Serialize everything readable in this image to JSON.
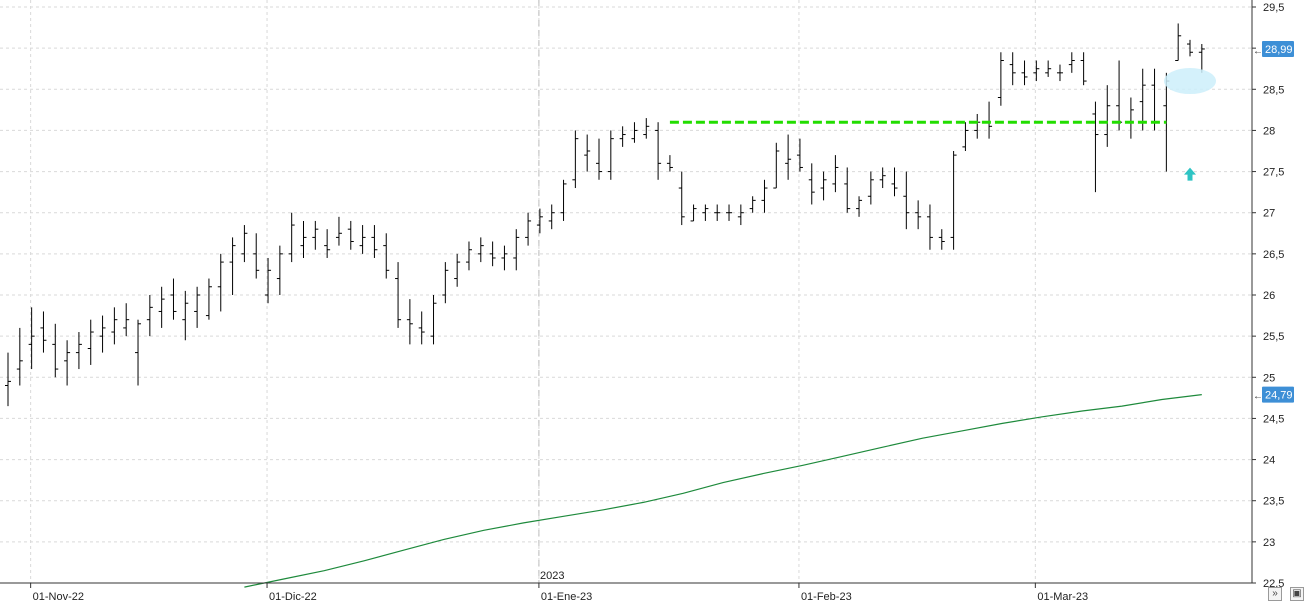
{
  "chart_data": {
    "type": "ohlc",
    "title": "",
    "xlabel": "",
    "ylabel": "",
    "ylim": [
      22.5,
      29.5
    ],
    "grid": true,
    "x_ticks": [
      "01-Nov-22",
      "01-Dic-22",
      "01-Ene-23",
      "01-Feb-23",
      "01-Mar-23"
    ],
    "year_marker": "2023",
    "y_ticks": [
      "29,5",
      "29",
      "28,5",
      "28",
      "27,5",
      "27",
      "26,5",
      "26",
      "25,5",
      "25",
      "24,5",
      "24",
      "23,5",
      "23",
      "22,5"
    ],
    "price_label": "28,99",
    "ma_label": "24,79",
    "colors": {
      "bars": "#000000",
      "moving_average": "#1e8a3c",
      "support_line": "#22dd00",
      "price_badge": "#3d8fd6",
      "arrow": "#2ec4c4",
      "highlight": "#cdeefa"
    },
    "ohlc": [
      [
        24.9,
        25.3,
        24.65,
        24.95
      ],
      [
        25.1,
        25.6,
        24.9,
        25.2
      ],
      [
        25.4,
        25.85,
        25.1,
        25.5
      ],
      [
        25.6,
        25.8,
        25.3,
        25.45
      ],
      [
        25.4,
        25.65,
        25.0,
        25.1
      ],
      [
        25.2,
        25.45,
        24.9,
        25.3
      ],
      [
        25.3,
        25.55,
        25.1,
        25.4
      ],
      [
        25.35,
        25.7,
        25.15,
        25.55
      ],
      [
        25.5,
        25.75,
        25.3,
        25.6
      ],
      [
        25.55,
        25.85,
        25.4,
        25.7
      ],
      [
        25.6,
        25.9,
        25.5,
        25.7
      ],
      [
        25.3,
        25.7,
        24.9,
        25.65
      ],
      [
        25.7,
        26.0,
        25.5,
        25.85
      ],
      [
        25.8,
        26.1,
        25.6,
        25.95
      ],
      [
        26.0,
        26.2,
        25.7,
        25.8
      ],
      [
        25.7,
        26.05,
        25.45,
        25.9
      ],
      [
        25.8,
        26.1,
        25.6,
        26.0
      ],
      [
        25.75,
        26.2,
        25.7,
        26.1
      ],
      [
        26.1,
        26.5,
        25.8,
        26.4
      ],
      [
        26.4,
        26.7,
        26.0,
        26.6
      ],
      [
        26.5,
        26.85,
        26.4,
        26.75
      ],
      [
        26.5,
        26.75,
        26.2,
        26.3
      ],
      [
        26.0,
        26.45,
        25.9,
        26.3
      ],
      [
        26.2,
        26.6,
        26.0,
        26.5
      ],
      [
        26.5,
        27.0,
        26.4,
        26.85
      ],
      [
        26.6,
        26.9,
        26.45,
        26.7
      ],
      [
        26.7,
        26.9,
        26.55,
        26.8
      ],
      [
        26.6,
        26.8,
        26.45,
        26.55
      ],
      [
        26.7,
        26.95,
        26.6,
        26.75
      ],
      [
        26.8,
        26.9,
        26.55,
        26.65
      ],
      [
        26.6,
        26.85,
        26.5,
        26.7
      ],
      [
        26.7,
        26.85,
        26.45,
        26.55
      ],
      [
        26.6,
        26.75,
        26.2,
        26.3
      ],
      [
        26.2,
        26.4,
        25.6,
        25.7
      ],
      [
        25.7,
        25.95,
        25.4,
        25.65
      ],
      [
        25.6,
        25.8,
        25.4,
        25.55
      ],
      [
        25.5,
        26.0,
        25.4,
        25.9
      ],
      [
        26.0,
        26.4,
        25.9,
        26.3
      ],
      [
        26.2,
        26.5,
        26.1,
        26.4
      ],
      [
        26.4,
        26.65,
        26.3,
        26.55
      ],
      [
        26.5,
        26.7,
        26.4,
        26.6
      ],
      [
        26.5,
        26.65,
        26.35,
        26.45
      ],
      [
        26.45,
        26.6,
        26.3,
        26.5
      ],
      [
        26.45,
        26.8,
        26.3,
        26.7
      ],
      [
        26.7,
        27.0,
        26.6,
        26.9
      ],
      [
        26.85,
        27.05,
        26.75,
        26.95
      ],
      [
        26.9,
        27.1,
        26.8,
        27.0
      ],
      [
        27.0,
        27.4,
        26.9,
        27.35
      ],
      [
        27.4,
        28.0,
        27.3,
        27.9
      ],
      [
        27.7,
        27.95,
        27.5,
        27.75
      ],
      [
        27.6,
        27.9,
        27.4,
        27.5
      ],
      [
        27.5,
        28.0,
        27.4,
        27.9
      ],
      [
        27.9,
        28.05,
        27.8,
        27.95
      ],
      [
        27.9,
        28.1,
        27.85,
        28.0
      ],
      [
        27.95,
        28.15,
        27.9,
        28.05
      ],
      [
        28.0,
        28.1,
        27.4,
        27.6
      ],
      [
        27.6,
        27.7,
        27.5,
        27.55
      ],
      [
        27.3,
        27.5,
        26.85,
        26.95
      ],
      [
        26.9,
        27.1,
        26.9,
        27.05
      ],
      [
        27.0,
        27.1,
        26.9,
        27.05
      ],
      [
        27.0,
        27.1,
        26.9,
        27.0
      ],
      [
        27.0,
        27.1,
        26.9,
        27.0
      ],
      [
        26.95,
        27.1,
        26.85,
        27.0
      ],
      [
        27.05,
        27.2,
        27.0,
        27.15
      ],
      [
        27.15,
        27.4,
        27.0,
        27.3
      ],
      [
        27.3,
        27.85,
        27.3,
        27.75
      ],
      [
        27.6,
        27.95,
        27.4,
        27.65
      ],
      [
        27.7,
        27.9,
        27.5,
        27.55
      ],
      [
        27.4,
        27.6,
        27.1,
        27.25
      ],
      [
        27.3,
        27.5,
        27.15,
        27.4
      ],
      [
        27.35,
        27.7,
        27.25,
        27.55
      ],
      [
        27.35,
        27.55,
        27.0,
        27.05
      ],
      [
        27.05,
        27.2,
        26.95,
        27.15
      ],
      [
        27.2,
        27.5,
        27.1,
        27.4
      ],
      [
        27.4,
        27.55,
        27.3,
        27.45
      ],
      [
        27.35,
        27.55,
        27.2,
        27.3
      ],
      [
        27.2,
        27.5,
        26.8,
        27.0
      ],
      [
        27.0,
        27.15,
        26.8,
        26.95
      ],
      [
        26.95,
        27.1,
        26.55,
        26.7
      ],
      [
        26.7,
        26.8,
        26.55,
        26.65
      ],
      [
        26.7,
        27.75,
        26.55,
        27.7
      ],
      [
        27.8,
        28.1,
        27.75,
        28.0
      ],
      [
        28.0,
        28.2,
        27.9,
        28.1
      ],
      [
        28.1,
        28.35,
        27.9,
        28.05
      ],
      [
        28.4,
        28.95,
        28.3,
        28.85
      ],
      [
        28.8,
        28.95,
        28.55,
        28.7
      ],
      [
        28.7,
        28.85,
        28.55,
        28.65
      ],
      [
        28.7,
        28.85,
        28.6,
        28.75
      ],
      [
        28.7,
        28.85,
        28.65,
        28.75
      ],
      [
        28.7,
        28.8,
        28.6,
        28.7
      ],
      [
        28.8,
        28.95,
        28.7,
        28.85
      ],
      [
        28.85,
        28.95,
        28.55,
        28.6
      ],
      [
        28.2,
        28.35,
        27.25,
        27.95
      ],
      [
        27.95,
        28.55,
        27.8,
        28.3
      ],
      [
        28.3,
        28.85,
        28.0,
        28.1
      ],
      [
        28.1,
        28.4,
        27.9,
        28.25
      ],
      [
        28.35,
        28.75,
        28.0,
        28.55
      ],
      [
        28.55,
        28.75,
        28.0,
        28.1
      ],
      [
        28.3,
        28.7,
        27.5,
        28.6
      ],
      [
        28.85,
        29.3,
        28.85,
        29.15
      ],
      [
        29.05,
        29.1,
        28.9,
        28.95
      ],
      [
        28.95,
        29.05,
        28.7,
        28.99
      ]
    ],
    "moving_average": {
      "x_range": [
        20,
        101
      ],
      "values": [
        22.45,
        22.55,
        22.65,
        22.77,
        22.9,
        23.03,
        23.14,
        23.23,
        23.31,
        23.39,
        23.48,
        23.59,
        23.72,
        23.83,
        23.93,
        24.04,
        24.15,
        24.26,
        24.35,
        24.44,
        24.52,
        24.59,
        24.65,
        24.73,
        24.79
      ]
    },
    "support_line": {
      "from_index": 56,
      "to_index": 98,
      "value": 28.1
    },
    "highlight_index": 100,
    "arrow_index": 100
  },
  "controls": {
    "scroll_icon": "double-chevron-down-icon",
    "save_icon": "disk-icon"
  }
}
